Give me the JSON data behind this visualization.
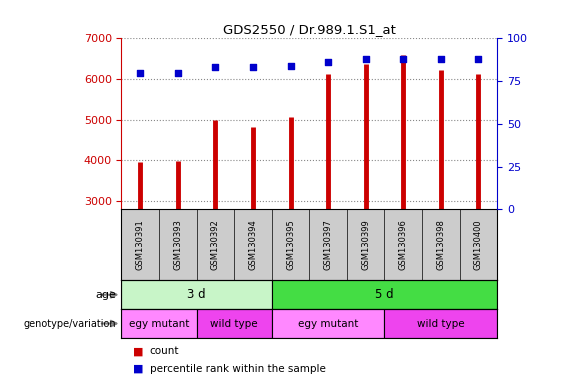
{
  "title": "GDS2550 / Dr.989.1.S1_at",
  "samples": [
    "GSM130391",
    "GSM130393",
    "GSM130392",
    "GSM130394",
    "GSM130395",
    "GSM130397",
    "GSM130399",
    "GSM130396",
    "GSM130398",
    "GSM130400"
  ],
  "counts": [
    3950,
    3980,
    5000,
    4820,
    5080,
    6120,
    6380,
    6600,
    6220,
    6130
  ],
  "percentiles": [
    80,
    80,
    83,
    83,
    84,
    86,
    88,
    88,
    88,
    88
  ],
  "ylim_left": [
    2800,
    7000
  ],
  "ylim_right": [
    0,
    100
  ],
  "yticks_left": [
    3000,
    4000,
    5000,
    6000,
    7000
  ],
  "yticks_right": [
    0,
    25,
    50,
    75,
    100
  ],
  "bar_color": "#cc0000",
  "dot_color": "#0000cc",
  "age_labels": [
    {
      "label": "3 d",
      "start": 0,
      "end": 4,
      "color_light": "#c8f5c8",
      "color_dark": "#c8f5c8"
    },
    {
      "label": "5 d",
      "start": 4,
      "end": 10,
      "color_light": "#44dd44",
      "color_dark": "#44dd44"
    }
  ],
  "genotype_labels": [
    {
      "label": "egy mutant",
      "start": 0,
      "end": 2,
      "color": "#ff88ff"
    },
    {
      "label": "wild type",
      "start": 2,
      "end": 4,
      "color": "#ee44ee"
    },
    {
      "label": "egy mutant",
      "start": 4,
      "end": 7,
      "color": "#ff88ff"
    },
    {
      "label": "wild type",
      "start": 7,
      "end": 10,
      "color": "#ee44ee"
    }
  ],
  "tick_area_color": "#cccccc",
  "grid_color": "#888888",
  "bar_linewidth": 3.5
}
